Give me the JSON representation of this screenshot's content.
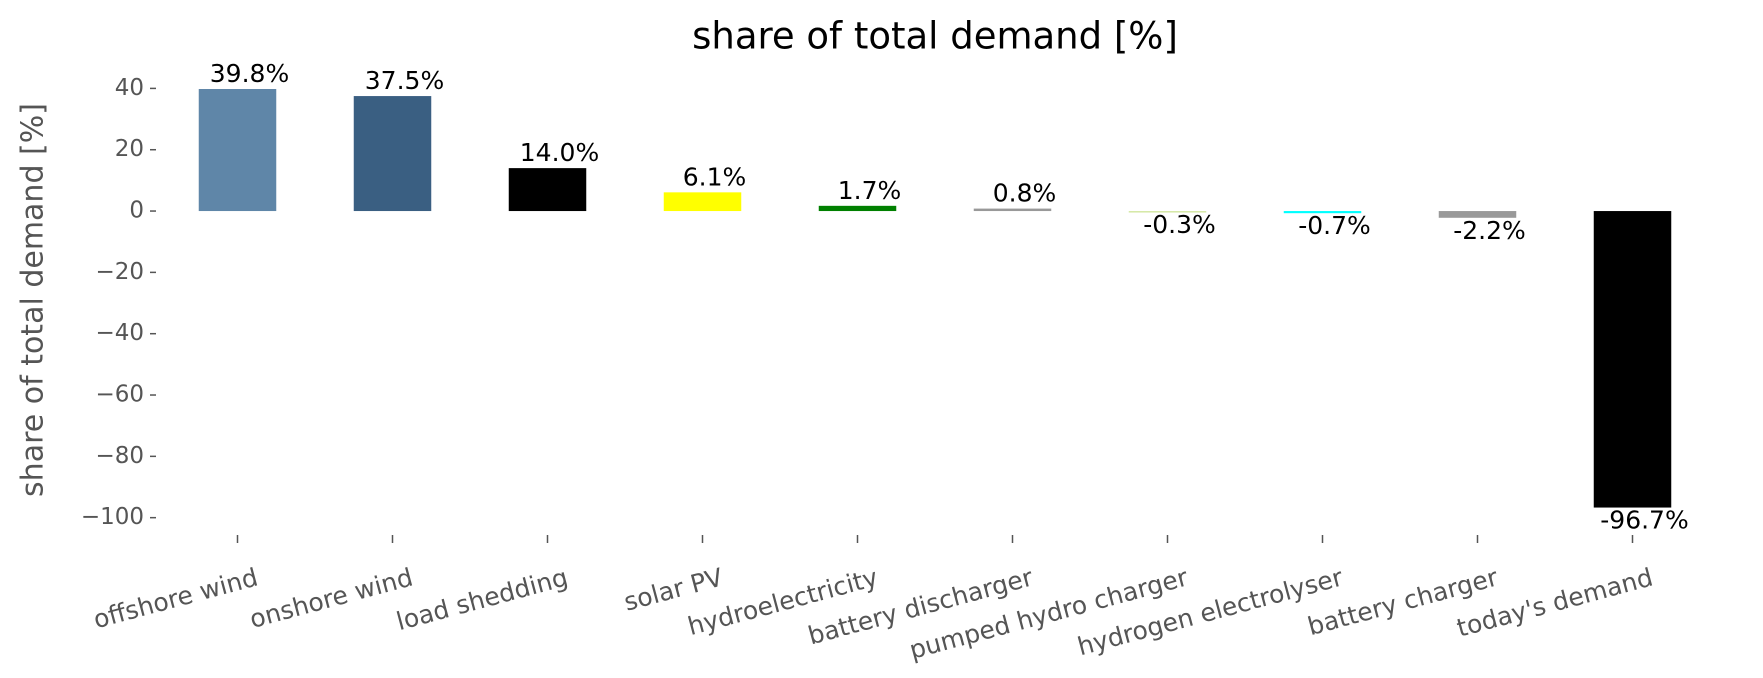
{
  "chart_data": {
    "type": "bar",
    "title": "share of total demand [%]",
    "y_label": "share of total demand [%]",
    "categories": [
      "offshore wind",
      "onshore wind",
      "load shedding",
      "solar PV",
      "hydroelectricity",
      "battery discharger",
      "pumped hydro charger",
      "hydrogen electrolyser",
      "battery charger",
      "today's demand"
    ],
    "values": [
      39.8,
      37.5,
      14.0,
      6.1,
      1.7,
      0.8,
      -0.3,
      -0.7,
      -2.2,
      -96.7
    ],
    "value_labels": [
      "39.8%",
      "37.5%",
      "14.0%",
      "6.1%",
      "1.7%",
      "0.8%",
      "-0.3%",
      "-0.7%",
      "-2.2%",
      "-96.7%"
    ],
    "colors": [
      "#5f86a8",
      "#3a5f82",
      "#000000",
      "#ffff00",
      "#008000",
      "#999999",
      "#d4e8a4",
      "#00ffff",
      "#999999",
      "#000000"
    ],
    "ylim": [
      -105,
      46
    ],
    "yticks": [
      40,
      20,
      0,
      {
        "value": -20,
        "label": "−20"
      },
      {
        "value": -40,
        "label": "−40"
      },
      {
        "value": -60,
        "label": "−60"
      },
      {
        "value": -80,
        "label": "−80"
      },
      {
        "value": -100,
        "label": "−100"
      }
    ]
  }
}
